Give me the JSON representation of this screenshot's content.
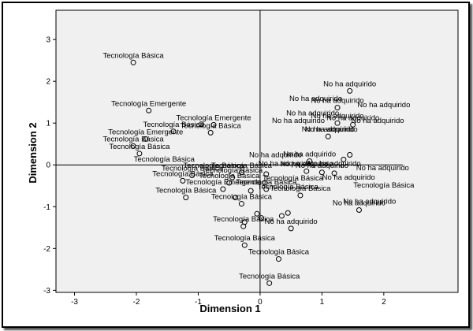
{
  "chart_data": {
    "type": "scatter",
    "xlabel": "Dimension 1",
    "ylabel": "Dimension 2",
    "xlim": [
      -3.3,
      3.2
    ],
    "ylim": [
      -3.05,
      3.7
    ],
    "xticks": [
      "-3",
      "-2",
      "-1",
      "0",
      "1",
      "2"
    ],
    "yticks": [
      "3",
      "2",
      "1",
      "0",
      "-1",
      "-2",
      "-3"
    ],
    "reference_lines": {
      "x": 0,
      "y": 0
    },
    "grid": false,
    "plot_background": "#f0f0f0",
    "points": [
      {
        "x": -2.05,
        "y": 2.45,
        "label": "Tecnología Básica"
      },
      {
        "x": -1.8,
        "y": 1.3,
        "label": "Tecnología Emergente"
      },
      {
        "x": -0.95,
        "y": 0.97,
        "label": ""
      },
      {
        "x": -0.75,
        "y": 0.96,
        "label": "Tecnología Emergente"
      },
      {
        "x": -1.4,
        "y": 0.8,
        "label": "Tecnología Básica"
      },
      {
        "x": -1.85,
        "y": 0.62,
        "label": "Tecnología Emergente"
      },
      {
        "x": -2.05,
        "y": 0.45,
        "label": "Tecnología Básica"
      },
      {
        "x": -0.8,
        "y": 0.77,
        "label": "Tecnología Básica"
      },
      {
        "x": -1.95,
        "y": 0.27,
        "label": "Tecnología Básica"
      },
      {
        "x": -1.1,
        "y": -0.25,
        "label": "Tecnología Básica"
      },
      {
        "x": -0.45,
        "y": -0.3,
        "label": "Tecnología Básica"
      },
      {
        "x": -0.3,
        "y": -0.18,
        "label": "Tecnología Básica"
      },
      {
        "x": 0.1,
        "y": -0.22,
        "label": ""
      },
      {
        "x": -1.25,
        "y": -0.38,
        "label": "Tecnología Básica"
      },
      {
        "x": -0.5,
        "y": -0.43,
        "label": "Tecnología Básica"
      },
      {
        "x": 0.08,
        "y": -0.43,
        "label": ""
      },
      {
        "x": -0.6,
        "y": -0.58,
        "label": "Tecnología Emergente"
      },
      {
        "x": -0.15,
        "y": -0.62,
        "label": ""
      },
      {
        "x": 0.1,
        "y": -0.58,
        "label": "Tecnología Básica"
      },
      {
        "x": -1.2,
        "y": -0.78,
        "label": "Tecnología Básica"
      },
      {
        "x": -0.4,
        "y": -0.78,
        "label": ""
      },
      {
        "x": -0.3,
        "y": -0.93,
        "label": "Tecnología Básica"
      },
      {
        "x": 0.65,
        "y": -0.73,
        "label": "Tecnología Básica"
      },
      {
        "x": 1.0,
        "y": -0.18,
        "label": "No ha adquirido"
      },
      {
        "x": 1.2,
        "y": -0.2,
        "label": ""
      },
      {
        "x": 0.75,
        "y": -0.15,
        "label": "No ha adquirido"
      },
      {
        "x": 0.8,
        "y": 0.09,
        "label": "No ha adquirido"
      },
      {
        "x": 1.35,
        "y": 0.13,
        "label": ""
      },
      {
        "x": 1.45,
        "y": 0.24,
        "label": ""
      },
      {
        "x": 1.1,
        "y": 0.68,
        "label": "No ha adquirido"
      },
      {
        "x": 1.5,
        "y": 0.96,
        "label": "No ha adquirido"
      },
      {
        "x": 1.25,
        "y": 1.0,
        "label": "No ha adquirido"
      },
      {
        "x": 1.25,
        "y": 1.37,
        "label": "No ha adquirido"
      },
      {
        "x": 1.45,
        "y": 1.77,
        "label": "No ha adquirido"
      },
      {
        "x": 1.6,
        "y": -1.08,
        "label": "No ha adquirido"
      },
      {
        "x": 0.35,
        "y": -1.22,
        "label": ""
      },
      {
        "x": 0.45,
        "y": -1.15,
        "label": ""
      },
      {
        "x": 0.5,
        "y": -1.52,
        "label": "No ha adquirido"
      },
      {
        "x": -0.05,
        "y": -1.17,
        "label": ""
      },
      {
        "x": 0.02,
        "y": -1.27,
        "label": ""
      },
      {
        "x": -0.25,
        "y": -1.37,
        "label": ""
      },
      {
        "x": -0.27,
        "y": -1.47,
        "label": "Tecnología Básica"
      },
      {
        "x": -0.25,
        "y": -1.92,
        "label": "Tecnología Básica"
      },
      {
        "x": 0.3,
        "y": -2.25,
        "label": "Tecnología Básica"
      },
      {
        "x": 0.15,
        "y": -2.83,
        "label": "Tecnología Básica"
      }
    ],
    "free_labels": [
      {
        "text": "Tecnología Básica",
        "x": -1.55,
        "y": 0.08
      },
      {
        "text": "Tecnología Básica",
        "x": -0.75,
        "y": -0.07
      },
      {
        "text": "No ha adquirido",
        "x": 0.9,
        "y": 1.53
      },
      {
        "text": "No ha adquirido",
        "x": 2.0,
        "y": 1.38
      },
      {
        "text": "No ha adquirido",
        "x": 0.85,
        "y": 1.18
      },
      {
        "text": "No ha adquirido",
        "x": 0.62,
        "y": 1.0
      },
      {
        "text": "No ha adquirido",
        "x": 1.9,
        "y": 1.0
      },
      {
        "text": "No ha adquirido",
        "x": 1.15,
        "y": 0.8
      },
      {
        "text": "No ha adquirido",
        "x": 0.25,
        "y": 0.18
      },
      {
        "text": "No ha adquirido",
        "x": 0.4,
        "y": -0.02
      },
      {
        "text": "No ha adquirido",
        "x": 1.2,
        "y": -0.02
      },
      {
        "text": "No ha adquirido",
        "x": 1.98,
        "y": -0.13
      },
      {
        "text": "No ha adquirido",
        "x": 1.43,
        "y": -0.35
      },
      {
        "text": "Tecnología Básica",
        "x": 0.53,
        "y": -0.37
      },
      {
        "text": "Tecnología Básica",
        "x": 2.0,
        "y": -0.54
      },
      {
        "text": "Tecnología Básica",
        "x": 0.45,
        "y": -0.58
      },
      {
        "text": "No ha adquirido",
        "x": 1.77,
        "y": -0.93
      }
    ]
  }
}
